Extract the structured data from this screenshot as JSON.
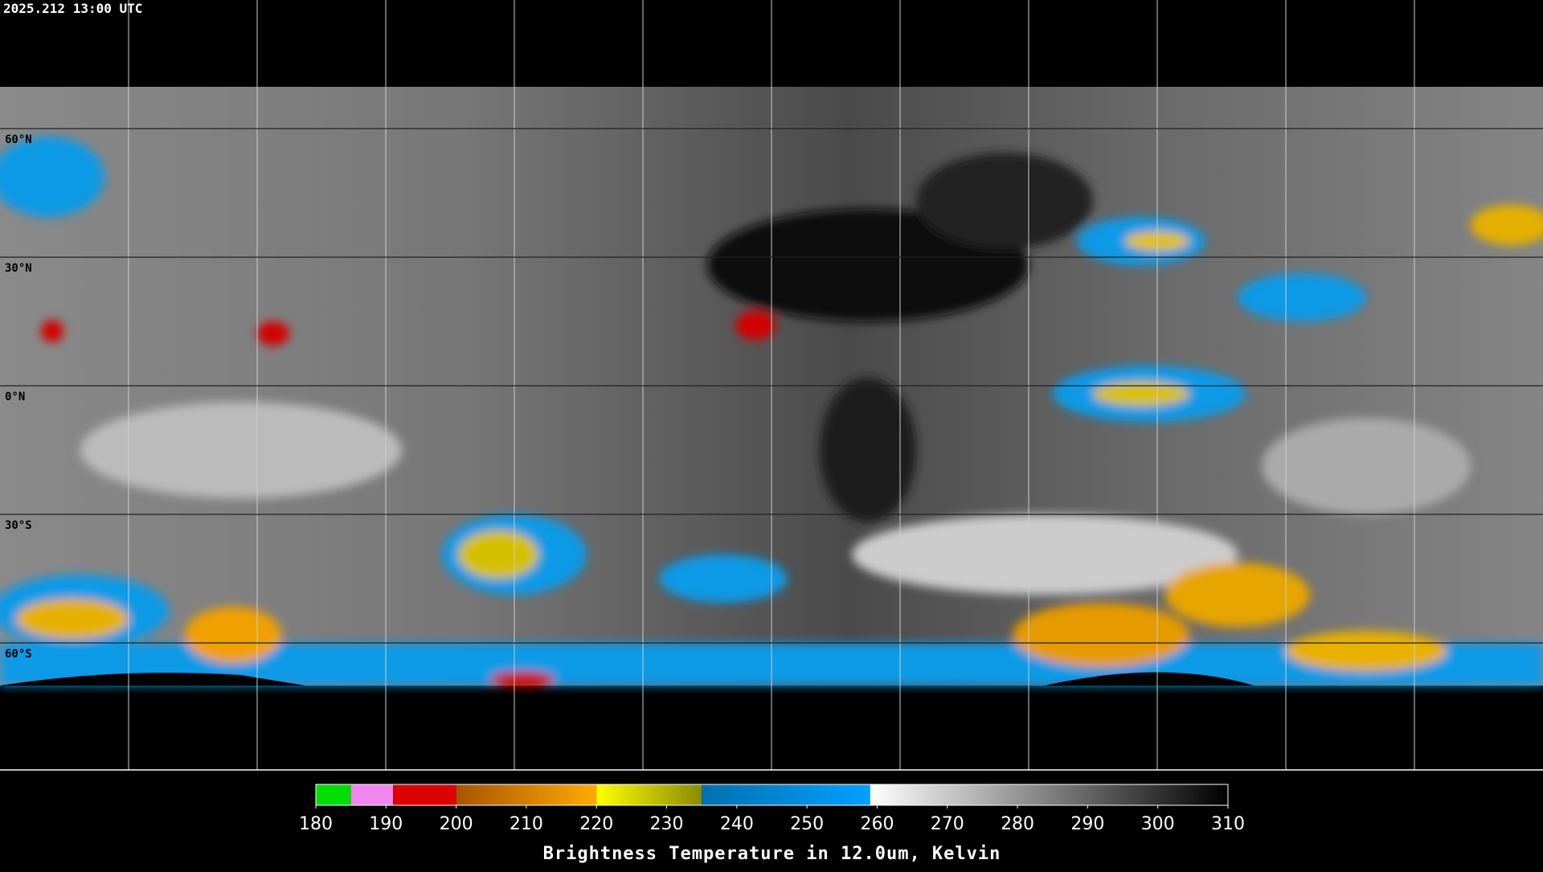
{
  "header": {
    "timestamp": "2025.212 13:00 UTC"
  },
  "map": {
    "lat_labels": [
      "60°N",
      "30°N",
      "0°N",
      "30°S",
      "60°S"
    ]
  },
  "colorbar": {
    "range": [
      180,
      310
    ],
    "ticks": [
      180,
      190,
      200,
      210,
      220,
      230,
      240,
      250,
      260,
      270,
      280,
      290,
      300,
      310
    ],
    "segments": [
      {
        "from": 180,
        "to": 185,
        "color_from": "#00dd00",
        "color_to": "#00dd00"
      },
      {
        "from": 185,
        "to": 191,
        "color_from": "#ee88ee",
        "color_to": "#ee88ee"
      },
      {
        "from": 191,
        "to": 200,
        "color_from": "#dd0000",
        "color_to": "#dd0000"
      },
      {
        "from": 200,
        "to": 220,
        "color_from": "#a85400",
        "color_to": "#ffaa00"
      },
      {
        "from": 220,
        "to": 235,
        "color_from": "#ffff00",
        "color_to": "#8a8a00"
      },
      {
        "from": 235,
        "to": 259,
        "color_from": "#0070b0",
        "color_to": "#00a0ff"
      },
      {
        "from": 259,
        "to": 310,
        "color_from": "#ffffff",
        "color_to": "#000000"
      }
    ],
    "label": "Brightness Temperature in 12.0um, Kelvin"
  }
}
